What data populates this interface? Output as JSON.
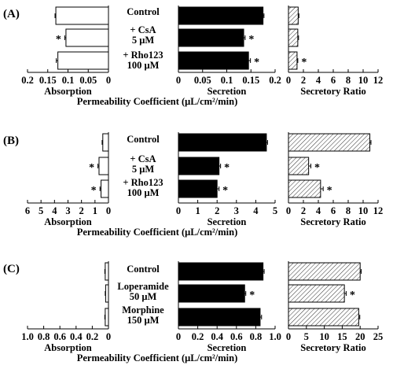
{
  "chart_data": [
    {
      "type": "bar",
      "panel": "(A)",
      "categories": [
        "Control",
        "+ CsA\n5 μM",
        "+ Rho123\n100 μM"
      ],
      "absorption": {
        "xlabel": "Absorption",
        "xlim": [
          0.2,
          0
        ],
        "ticks": [
          0.2,
          0.15,
          0.1,
          0.05,
          0
        ],
        "tick_labels": [
          "0.2",
          "0.15",
          "0.1",
          "0.05",
          "0"
        ],
        "values": [
          0.13,
          0.105,
          0.125
        ],
        "errors": [
          0.002,
          0.003,
          0.004
        ],
        "significant": [
          false,
          true,
          false
        ],
        "color": "#ffffff"
      },
      "secretion": {
        "xlabel": "Secretion",
        "xlim": [
          0,
          0.2
        ],
        "ticks": [
          0,
          0.05,
          0.1,
          0.15,
          0.2
        ],
        "tick_labels": [
          "0",
          "0.05",
          "0.1",
          "0.15",
          "0.2"
        ],
        "values": [
          0.175,
          0.135,
          0.145
        ],
        "errors": [
          0.002,
          0.003,
          0.004
        ],
        "significant": [
          false,
          true,
          true
        ],
        "color": "#000000"
      },
      "ratio": {
        "xlabel": "Secretory Ratio",
        "xlim": [
          0,
          12
        ],
        "ticks": [
          0,
          2,
          4,
          6,
          8,
          10,
          12
        ],
        "tick_labels": [
          "0",
          "2",
          "4",
          "6",
          "8",
          "10",
          "12"
        ],
        "values": [
          1.3,
          1.25,
          1.15
        ],
        "errors": [
          0.1,
          0.1,
          0.1
        ],
        "significant": [
          false,
          false,
          true
        ],
        "hatch": "diagonal"
      },
      "shared_xlabel": "Permeability Coefficient (μL/cm²/min)"
    },
    {
      "type": "bar",
      "panel": "(B)",
      "categories": [
        "Control",
        "+ CsA\n5 μM",
        "+ Rho123\n100 μM"
      ],
      "absorption": {
        "xlabel": "Absorption",
        "xlim": [
          6,
          0
        ],
        "ticks": [
          6,
          5,
          4,
          3,
          2,
          1,
          0
        ],
        "tick_labels": [
          "6",
          "5",
          "4",
          "3",
          "2",
          "1",
          "0"
        ],
        "values": [
          0.42,
          0.7,
          0.55
        ],
        "errors": [
          0.05,
          0.08,
          0.08
        ],
        "significant": [
          false,
          true,
          true
        ],
        "color": "#ffffff"
      },
      "secretion": {
        "xlabel": "Secretion",
        "xlim": [
          0,
          5
        ],
        "ticks": [
          0,
          1,
          2,
          3,
          4,
          5
        ],
        "tick_labels": [
          "0",
          "1",
          "2",
          "3",
          "4",
          "5"
        ],
        "values": [
          4.55,
          2.1,
          2.0
        ],
        "errors": [
          0.06,
          0.08,
          0.1
        ],
        "significant": [
          false,
          true,
          true
        ],
        "color": "#000000"
      },
      "ratio": {
        "xlabel": "Secretory Ratio",
        "xlim": [
          0,
          12
        ],
        "ticks": [
          0,
          2,
          4,
          6,
          8,
          10,
          12
        ],
        "tick_labels": [
          "0",
          "2",
          "4",
          "6",
          "8",
          "10",
          "12"
        ],
        "values": [
          10.9,
          2.7,
          4.3
        ],
        "errors": [
          0.15,
          0.3,
          0.35
        ],
        "significant": [
          false,
          true,
          true
        ],
        "hatch": "diagonal"
      },
      "shared_xlabel": "Permeability Coefficient (μL/cm²/min)"
    },
    {
      "type": "bar",
      "panel": "(C)",
      "categories": [
        "Control",
        "Loperamide\n50 μM",
        "Morphine\n150 μM"
      ],
      "absorption": {
        "xlabel": "Absorption",
        "xlim": [
          1.0,
          0
        ],
        "ticks": [
          1.0,
          0.8,
          0.6,
          0.4,
          0.2,
          0
        ],
        "tick_labels": [
          "1.0",
          "0.8",
          "0.6",
          "0.4",
          "0.2",
          "0"
        ],
        "values": [
          0.04,
          0.035,
          0.04
        ],
        "errors": [
          0.005,
          0.005,
          0.005
        ],
        "significant": [
          false,
          false,
          false
        ],
        "color": "#ffffff"
      },
      "secretion": {
        "xlabel": "Secretion",
        "xlim": [
          0,
          1.0
        ],
        "ticks": [
          0,
          0.2,
          0.4,
          0.6,
          0.8,
          1.0
        ],
        "tick_labels": [
          "0",
          "0.2",
          "0.4",
          "0.6",
          "0.8",
          "1.0"
        ],
        "values": [
          0.875,
          0.685,
          0.845
        ],
        "errors": [
          0.012,
          0.012,
          0.015
        ],
        "significant": [
          false,
          true,
          false
        ],
        "color": "#000000"
      },
      "ratio": {
        "xlabel": "Secretory Ratio",
        "xlim": [
          0,
          25
        ],
        "ticks": [
          0,
          5,
          10,
          15,
          20,
          25
        ],
        "tick_labels": [
          "0",
          "5",
          "10",
          "15",
          "20",
          "25"
        ],
        "values": [
          20.0,
          15.6,
          19.6
        ],
        "errors": [
          0.3,
          0.5,
          0.3
        ],
        "significant": [
          false,
          true,
          false
        ],
        "hatch": "diagonal"
      },
      "shared_xlabel": "Permeability Coefficient (μL/cm²/min)"
    }
  ],
  "asterisk": "*"
}
